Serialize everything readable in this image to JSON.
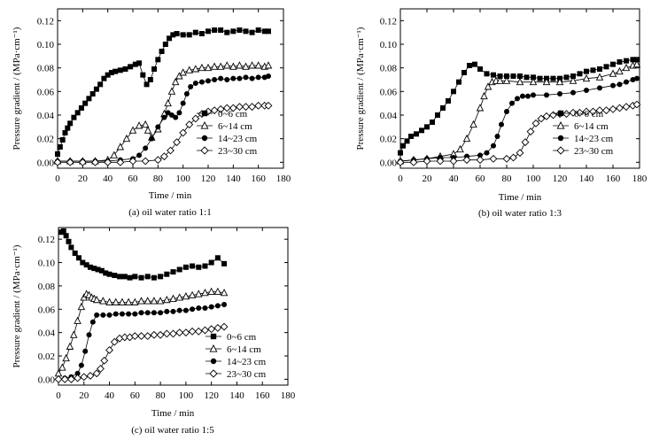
{
  "chart_data": [
    {
      "type": "scatter",
      "caption": "(a) oil water ratio 1:1",
      "xlabel": "Time / min",
      "ylabel": "Pressure gradient / (MPa·cm⁻¹)",
      "xlim": [
        0,
        180
      ],
      "ylim": [
        -0.005,
        0.13
      ],
      "xticks": [
        "0",
        "20",
        "40",
        "60",
        "80",
        "100",
        "120",
        "140",
        "160",
        "180"
      ],
      "yticks": [
        "0.00",
        "0.02",
        "0.04",
        "0.06",
        "0.08",
        "0.10",
        "0.12"
      ],
      "legend_position": "lower-right",
      "series": [
        {
          "name": "0~6 cm",
          "marker": "square",
          "x": [
            0,
            2,
            4,
            6,
            8,
            10,
            13,
            16,
            19,
            22,
            25,
            28,
            31,
            34,
            37,
            40,
            43,
            46,
            50,
            54,
            58,
            62,
            65,
            68,
            71,
            74,
            77,
            80,
            83,
            86,
            89,
            92,
            95,
            100,
            105,
            110,
            115,
            120,
            125,
            130,
            135,
            140,
            145,
            150,
            155,
            160,
            165,
            168
          ],
          "y": [
            0.007,
            0.013,
            0.019,
            0.025,
            0.029,
            0.033,
            0.038,
            0.042,
            0.046,
            0.05,
            0.054,
            0.058,
            0.062,
            0.066,
            0.071,
            0.074,
            0.076,
            0.077,
            0.078,
            0.079,
            0.081,
            0.083,
            0.084,
            0.074,
            0.066,
            0.07,
            0.079,
            0.087,
            0.094,
            0.1,
            0.105,
            0.108,
            0.109,
            0.108,
            0.108,
            0.11,
            0.109,
            0.111,
            0.112,
            0.112,
            0.11,
            0.111,
            0.112,
            0.111,
            0.11,
            0.112,
            0.111,
            0.111
          ]
        },
        {
          "name": "6~14 cm",
          "marker": "triangle",
          "x": [
            0,
            10,
            20,
            30,
            40,
            45,
            50,
            55,
            60,
            65,
            70,
            72,
            75,
            80,
            85,
            88,
            91,
            94,
            97,
            100,
            105,
            110,
            115,
            120,
            125,
            130,
            135,
            140,
            145,
            150,
            155,
            160,
            165,
            168
          ],
          "y": [
            0.001,
            0.001,
            0.001,
            0.001,
            0.002,
            0.006,
            0.013,
            0.02,
            0.027,
            0.031,
            0.032,
            0.027,
            0.021,
            0.028,
            0.041,
            0.05,
            0.06,
            0.068,
            0.073,
            0.076,
            0.078,
            0.079,
            0.08,
            0.08,
            0.081,
            0.081,
            0.082,
            0.081,
            0.082,
            0.081,
            0.082,
            0.082,
            0.081,
            0.082
          ]
        },
        {
          "name": "14~23 cm",
          "marker": "circle",
          "x": [
            0,
            10,
            20,
            30,
            40,
            50,
            60,
            65,
            70,
            75,
            80,
            85,
            88,
            91,
            94,
            97,
            100,
            103,
            106,
            110,
            115,
            120,
            125,
            130,
            135,
            140,
            145,
            150,
            155,
            160,
            165,
            168
          ],
          "y": [
            0.001,
            0.001,
            0.001,
            0.001,
            0.001,
            0.002,
            0.003,
            0.006,
            0.012,
            0.02,
            0.03,
            0.038,
            0.042,
            0.04,
            0.038,
            0.042,
            0.05,
            0.058,
            0.064,
            0.067,
            0.068,
            0.069,
            0.07,
            0.071,
            0.07,
            0.071,
            0.071,
            0.072,
            0.071,
            0.072,
            0.072,
            0.073
          ]
        },
        {
          "name": "23~30 cm",
          "marker": "diamond",
          "x": [
            0,
            10,
            20,
            30,
            40,
            50,
            60,
            70,
            80,
            85,
            90,
            95,
            100,
            105,
            110,
            115,
            120,
            125,
            130,
            135,
            140,
            145,
            150,
            155,
            160,
            165,
            168
          ],
          "y": [
            0.0,
            0.0,
            0.0,
            0.0,
            0.0,
            0.0,
            0.001,
            0.001,
            0.002,
            0.005,
            0.01,
            0.017,
            0.025,
            0.032,
            0.037,
            0.041,
            0.043,
            0.044,
            0.045,
            0.046,
            0.046,
            0.047,
            0.047,
            0.047,
            0.048,
            0.048,
            0.048
          ]
        }
      ]
    },
    {
      "type": "scatter",
      "caption": "(b) oil water ratio 1:3",
      "xlabel": "Time / min",
      "ylabel": "Pressure gradient / (MPa·cm⁻¹)",
      "xlim": [
        0,
        180
      ],
      "ylim": [
        -0.005,
        0.13
      ],
      "xticks": [
        "0",
        "20",
        "40",
        "60",
        "80",
        "100",
        "120",
        "140",
        "160",
        "180"
      ],
      "yticks": [
        "0.00",
        "0.02",
        "0.04",
        "0.06",
        "0.08",
        "0.10",
        "0.12"
      ],
      "legend_position": "lower-right",
      "series": [
        {
          "name": "0~6 cm",
          "marker": "square",
          "x": [
            0,
            2,
            5,
            8,
            12,
            16,
            20,
            24,
            28,
            32,
            36,
            40,
            44,
            48,
            52,
            56,
            60,
            65,
            70,
            75,
            80,
            85,
            90,
            95,
            100,
            105,
            110,
            115,
            120,
            125,
            130,
            135,
            140,
            145,
            150,
            155,
            160,
            165,
            170,
            175,
            178
          ],
          "y": [
            0.008,
            0.014,
            0.018,
            0.022,
            0.024,
            0.027,
            0.03,
            0.034,
            0.04,
            0.046,
            0.052,
            0.06,
            0.068,
            0.076,
            0.082,
            0.083,
            0.079,
            0.075,
            0.074,
            0.073,
            0.073,
            0.073,
            0.073,
            0.072,
            0.072,
            0.071,
            0.071,
            0.071,
            0.071,
            0.072,
            0.073,
            0.075,
            0.077,
            0.078,
            0.079,
            0.081,
            0.083,
            0.085,
            0.086,
            0.087,
            0.087
          ]
        },
        {
          "name": "6~14 cm",
          "marker": "triangle",
          "x": [
            0,
            10,
            20,
            30,
            40,
            45,
            50,
            55,
            60,
            63,
            66,
            69,
            72,
            75,
            80,
            90,
            100,
            110,
            120,
            130,
            140,
            150,
            160,
            165,
            170,
            175,
            178
          ],
          "y": [
            0.001,
            0.002,
            0.003,
            0.005,
            0.007,
            0.011,
            0.02,
            0.032,
            0.046,
            0.056,
            0.064,
            0.068,
            0.069,
            0.069,
            0.069,
            0.068,
            0.068,
            0.068,
            0.068,
            0.069,
            0.071,
            0.072,
            0.075,
            0.077,
            0.08,
            0.082,
            0.083
          ]
        },
        {
          "name": "14~23 cm",
          "marker": "circle",
          "x": [
            0,
            10,
            20,
            30,
            40,
            50,
            60,
            65,
            70,
            73,
            76,
            80,
            84,
            88,
            92,
            96,
            100,
            110,
            120,
            130,
            140,
            150,
            160,
            165,
            170,
            175,
            178
          ],
          "y": [
            0.001,
            0.002,
            0.003,
            0.004,
            0.004,
            0.005,
            0.006,
            0.008,
            0.014,
            0.022,
            0.032,
            0.043,
            0.05,
            0.054,
            0.056,
            0.056,
            0.057,
            0.057,
            0.058,
            0.059,
            0.061,
            0.063,
            0.065,
            0.066,
            0.068,
            0.07,
            0.071
          ]
        },
        {
          "name": "23~30 cm",
          "marker": "diamond",
          "x": [
            0,
            10,
            20,
            30,
            40,
            50,
            60,
            70,
            80,
            85,
            90,
            94,
            98,
            102,
            106,
            110,
            115,
            120,
            125,
            130,
            135,
            140,
            145,
            150,
            155,
            160,
            165,
            170,
            175,
            178
          ],
          "y": [
            0.0,
            0.0,
            0.001,
            0.001,
            0.001,
            0.002,
            0.002,
            0.003,
            0.003,
            0.004,
            0.008,
            0.017,
            0.026,
            0.033,
            0.037,
            0.039,
            0.04,
            0.041,
            0.041,
            0.042,
            0.042,
            0.043,
            0.043,
            0.044,
            0.044,
            0.045,
            0.046,
            0.047,
            0.048,
            0.049
          ]
        }
      ]
    },
    {
      "type": "scatter",
      "caption": "(c) oil water ratio 1:5",
      "xlabel": "Time / min",
      "ylabel": "Pressure gradient / (MPa·cm⁻¹)",
      "xlim": [
        0,
        180
      ],
      "ylim": [
        -0.005,
        0.13
      ],
      "xticks": [
        "0",
        "20",
        "40",
        "60",
        "80",
        "100",
        "120",
        "140",
        "160",
        "180"
      ],
      "yticks": [
        "0.00",
        "0.02",
        "0.04",
        "0.06",
        "0.08",
        "0.10",
        "0.12"
      ],
      "legend_position": "lower-right",
      "series": [
        {
          "name": "0~6 cm",
          "marker": "square",
          "x": [
            2,
            4,
            6,
            8,
            10,
            13,
            16,
            19,
            22,
            25,
            28,
            31,
            34,
            37,
            40,
            44,
            48,
            52,
            56,
            60,
            65,
            70,
            75,
            80,
            85,
            90,
            95,
            100,
            105,
            110,
            115,
            120,
            125,
            130
          ],
          "y": [
            0.126,
            0.127,
            0.123,
            0.118,
            0.113,
            0.108,
            0.104,
            0.1,
            0.098,
            0.096,
            0.095,
            0.094,
            0.093,
            0.091,
            0.09,
            0.089,
            0.088,
            0.088,
            0.087,
            0.088,
            0.087,
            0.088,
            0.087,
            0.088,
            0.09,
            0.092,
            0.094,
            0.096,
            0.097,
            0.096,
            0.097,
            0.1,
            0.104,
            0.099
          ]
        },
        {
          "name": "6~14 cm",
          "marker": "triangle",
          "x": [
            0,
            3,
            6,
            9,
            12,
            15,
            18,
            20,
            22,
            24,
            26,
            28,
            30,
            35,
            40,
            45,
            50,
            55,
            60,
            65,
            70,
            75,
            80,
            85,
            90,
            95,
            100,
            105,
            110,
            115,
            120,
            125,
            130
          ],
          "y": [
            0.005,
            0.01,
            0.018,
            0.028,
            0.038,
            0.05,
            0.062,
            0.07,
            0.073,
            0.072,
            0.07,
            0.069,
            0.068,
            0.067,
            0.066,
            0.066,
            0.066,
            0.066,
            0.066,
            0.067,
            0.067,
            0.067,
            0.067,
            0.068,
            0.069,
            0.07,
            0.071,
            0.072,
            0.073,
            0.074,
            0.075,
            0.075,
            0.074
          ]
        },
        {
          "name": "14~23 cm",
          "marker": "circle",
          "x": [
            0,
            5,
            10,
            15,
            18,
            21,
            24,
            27,
            30,
            35,
            40,
            45,
            50,
            55,
            60,
            65,
            70,
            75,
            80,
            85,
            90,
            95,
            100,
            105,
            110,
            115,
            120,
            125,
            130
          ],
          "y": [
            0.0,
            0.001,
            0.002,
            0.005,
            0.012,
            0.024,
            0.038,
            0.049,
            0.055,
            0.055,
            0.055,
            0.056,
            0.056,
            0.056,
            0.056,
            0.057,
            0.057,
            0.057,
            0.057,
            0.058,
            0.058,
            0.059,
            0.059,
            0.06,
            0.061,
            0.061,
            0.062,
            0.063,
            0.064
          ]
        },
        {
          "name": "23~30 cm",
          "marker": "diamond",
          "x": [
            0,
            5,
            10,
            15,
            20,
            25,
            30,
            33,
            36,
            40,
            44,
            48,
            52,
            56,
            60,
            65,
            70,
            75,
            80,
            85,
            90,
            95,
            100,
            105,
            110,
            115,
            120,
            125,
            130
          ],
          "y": [
            0.0,
            0.0,
            0.0,
            0.001,
            0.002,
            0.003,
            0.005,
            0.009,
            0.016,
            0.025,
            0.032,
            0.035,
            0.036,
            0.036,
            0.037,
            0.037,
            0.037,
            0.038,
            0.038,
            0.039,
            0.039,
            0.04,
            0.04,
            0.041,
            0.041,
            0.042,
            0.043,
            0.044,
            0.045
          ]
        }
      ]
    }
  ]
}
